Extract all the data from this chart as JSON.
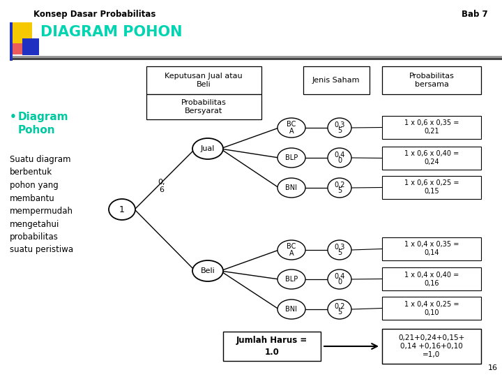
{
  "title_left": "Konsep Dasar Probabilitas",
  "title_right": "Bab 7",
  "heading": "DIAGRAM POHON",
  "bullet_title": "Diagram\nPohon",
  "body_text": "Suatu diagram\nberbentuk\npohon yang\nmembantu\nmempermudah\nmengetahui\nprobabilitas\nsuatu peristiwa",
  "col_headers": [
    "Keputusan Jual atau\nBeli",
    "Jenis Saham",
    "Probabilitas\nbersama"
  ],
  "sub_header": "Probabilitas\nBersyarat",
  "root_label": "1",
  "jual_label": "Jual",
  "jual_prob": "0,\n6",
  "beli_label": "Beli",
  "jual_stocks": [
    "BC\nA",
    "BLP",
    "BNI"
  ],
  "jual_stock_probs": [
    "0,3\n5",
    "0,4\n0",
    "0,2\n5"
  ],
  "beli_stocks": [
    "BC\nA",
    "BLP",
    "BNI"
  ],
  "beli_stock_probs": [
    "0,3\n5",
    "0,4\n0",
    "0,2\n5"
  ],
  "prob_jual": [
    "1 x 0,6 x 0,35 =\n0,21",
    "1 x 0,6 x 0,40 =\n0,24",
    "1 x 0,6 x 0,25 =\n0,15"
  ],
  "prob_beli": [
    "1 x 0,4 x 0,35 =\n0,14",
    "1 x 0,4 x 0,40 =\n0,16",
    "1 x 0,4 x 0,25 =\n0,10"
  ],
  "jumlah_label": "Jumlah Harus =\n1.0",
  "jumlah_result": "0,21+0,24+0,15+\n0,14 +0,16+0,10\n=1,0",
  "page_number": "16",
  "bg_color": "#ffffff",
  "heading_color": "#00d4b0",
  "bullet_color": "#00c8a0",
  "yellow_sq": "#f5c800",
  "red_sq": "#e84040",
  "blue_sq": "#2030c0"
}
